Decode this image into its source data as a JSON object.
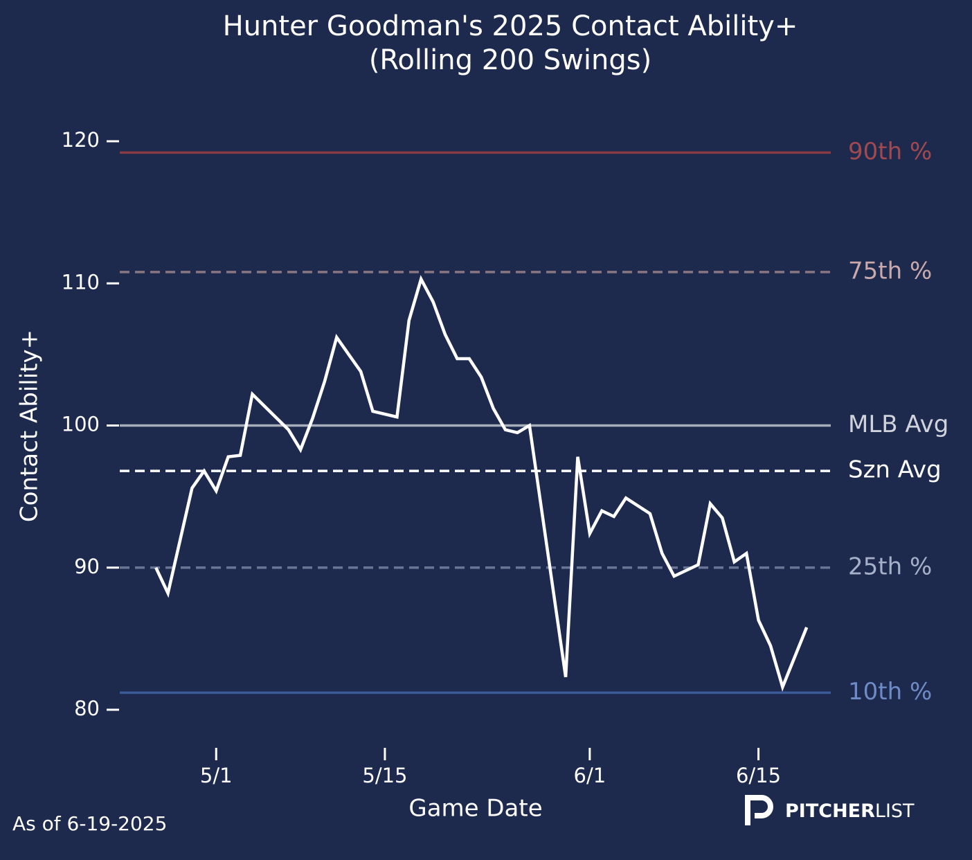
{
  "chart_data": {
    "type": "line",
    "title": "Hunter Goodman's 2025 Contact Ability+",
    "subtitle": "(Rolling 200 Swings)",
    "x_label": "Game Date",
    "y_label": "Contact Ability+",
    "x": [
      "4/26",
      "4/27",
      "4/29",
      "4/30",
      "5/1",
      "5/2",
      "5/3",
      "5/4",
      "5/7",
      "5/8",
      "5/9",
      "5/10",
      "5/11",
      "5/12",
      "5/13",
      "5/14",
      "5/16",
      "5/17",
      "5/18",
      "5/19",
      "5/20",
      "5/21",
      "5/22",
      "5/23",
      "5/24",
      "5/25",
      "5/26",
      "5/27",
      "5/30",
      "5/31",
      "6/1",
      "6/2",
      "6/3",
      "6/4",
      "6/6",
      "6/7",
      "6/8",
      "6/10",
      "6/11",
      "6/12",
      "6/13",
      "6/14",
      "6/15",
      "6/16",
      "6/17",
      "6/19"
    ],
    "series": [
      {
        "name": "Contact Ability+",
        "color": "#ffffff",
        "values": [
          90,
          88.2,
          95.6,
          96.8,
          95.4,
          97.8,
          97.9,
          102.2,
          99.7,
          98.3,
          100.5,
          103.1,
          106.2,
          105,
          103.8,
          101,
          100.6,
          107.4,
          110.3,
          108.7,
          106.4,
          104.7,
          104.7,
          103.4,
          101.2,
          99.7,
          99.5,
          100,
          82.3,
          97.8,
          92.4,
          94,
          93.6,
          94.9,
          93.8,
          91,
          89.4,
          90.2,
          94.5,
          93.5,
          90.4,
          91,
          86.3,
          84.5,
          81.6,
          85.8
        ]
      }
    ],
    "xlim": [
      "4/23",
      "6/21"
    ],
    "xticks": [
      "5/1",
      "5/15",
      "6/1",
      "6/15"
    ],
    "ylim": [
      80,
      120
    ],
    "yticks": [
      80,
      90,
      100,
      110,
      120
    ],
    "reference_lines": [
      {
        "name": "90th %",
        "value": 119.2,
        "color": "#8b3a44",
        "label_color": "#a04a50",
        "dashed": false
      },
      {
        "name": "75th %",
        "value": 110.8,
        "color": "#8a7680",
        "label_color": "#c9a9ac",
        "dashed": true
      },
      {
        "name": "MLB Avg",
        "value": 100,
        "color": "#a9aebb",
        "label_color": "#d0d3db",
        "dashed": false
      },
      {
        "name": "Szn Avg",
        "value": 96.8,
        "color": "#ffffff",
        "label_color": "#ffffff",
        "dashed": true
      },
      {
        "name": "25th %",
        "value": 90,
        "color": "#6a7596",
        "label_color": "#a6b0c8",
        "dashed": true
      },
      {
        "name": "10th %",
        "value": 81.2,
        "color": "#3a5a9a",
        "label_color": "#6e8bc6",
        "dashed": false
      }
    ],
    "footnote": "As of 6-19-2025",
    "logo": {
      "bold": "PITCHER",
      "light": "LIST"
    }
  }
}
